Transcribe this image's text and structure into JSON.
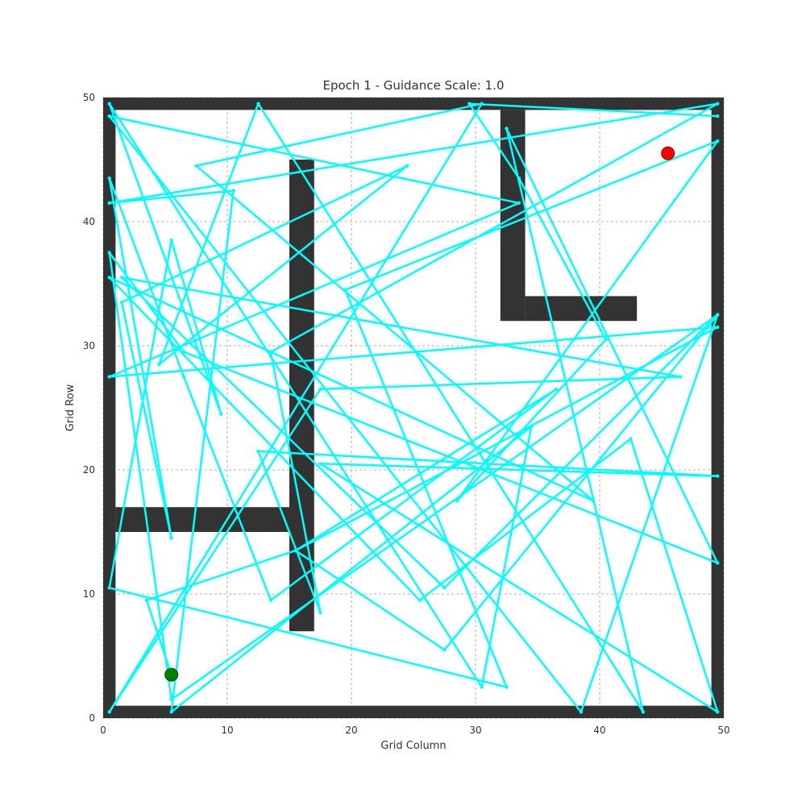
{
  "chart_data": {
    "type": "line",
    "title": "Epoch 1 - Guidance Scale: 1.0",
    "xlabel": "Grid Column",
    "ylabel": "Grid Row",
    "xlim": [
      0,
      50
    ],
    "ylim": [
      0,
      50
    ],
    "xticks": [
      "0",
      "10",
      "20",
      "30",
      "40",
      "50"
    ],
    "yticks": [
      "0",
      "10",
      "20",
      "30",
      "40",
      "50"
    ],
    "grid": true,
    "colors": {
      "path": "#00ffff",
      "wall": "#333333",
      "start": "#008000",
      "goal": "#ff0000",
      "grid": "#999999"
    },
    "walls": [
      {
        "x0": 0,
        "x1": 50,
        "y0": 0,
        "y1": 1
      },
      {
        "x0": 0,
        "x1": 50,
        "y0": 49,
        "y1": 50
      },
      {
        "x0": 0,
        "x1": 1,
        "y0": 0,
        "y1": 50
      },
      {
        "x0": 49,
        "x1": 50,
        "y0": 0,
        "y1": 50
      },
      {
        "x0": 15,
        "x1": 17,
        "y0": 7,
        "y1": 45
      },
      {
        "x0": 1,
        "x1": 15,
        "y0": 15,
        "y1": 17
      },
      {
        "x0": 32,
        "x1": 34,
        "y0": 32,
        "y1": 49
      },
      {
        "x0": 34,
        "x1": 43,
        "y0": 32,
        "y1": 34
      }
    ],
    "start": {
      "x": 5.5,
      "y": 3.5
    },
    "goal": {
      "x": 45.5,
      "y": 45.5
    },
    "path": [
      [
        5.5,
        3.5
      ],
      [
        3.5,
        9.5
      ],
      [
        15.5,
        13.5
      ],
      [
        49.5,
        31.5
      ],
      [
        0.5,
        27.5
      ],
      [
        33.5,
        41.5
      ],
      [
        0.5,
        48.5
      ],
      [
        38.5,
        0.5
      ],
      [
        49.5,
        32.5
      ],
      [
        27.5,
        5.5
      ],
      [
        15.5,
        13.5
      ],
      [
        36.5,
        26.5
      ],
      [
        13.5,
        9.5
      ],
      [
        6.5,
        27.5
      ],
      [
        0.5,
        43.5
      ],
      [
        5.5,
        14.5
      ],
      [
        1.5,
        33.5
      ],
      [
        24.5,
        44.5
      ],
      [
        4.5,
        28.5
      ],
      [
        12.5,
        49.5
      ],
      [
        43.5,
        0.5
      ],
      [
        32.5,
        47.5
      ],
      [
        49.5,
        12.5
      ],
      [
        6.5,
        29.5
      ],
      [
        0.5,
        37.5
      ],
      [
        5.5,
        1.5
      ],
      [
        49.5,
        32.5
      ],
      [
        27.5,
        10.5
      ],
      [
        1.5,
        35.5
      ],
      [
        46.5,
        27.5
      ],
      [
        17.5,
        26.5
      ],
      [
        0.5,
        0.5
      ],
      [
        30.5,
        49.5
      ],
      [
        7.5,
        44.5
      ],
      [
        39.5,
        17.5
      ],
      [
        0.5,
        35.5
      ],
      [
        25.5,
        9.5
      ],
      [
        42.5,
        22.5
      ],
      [
        49.5,
        0.5
      ],
      [
        17.5,
        20.5
      ],
      [
        49.5,
        19.5
      ],
      [
        12.5,
        21.5
      ],
      [
        17.5,
        8.5
      ],
      [
        13.5,
        29.5
      ],
      [
        49.5,
        49.5
      ],
      [
        0.5,
        41.5
      ],
      [
        10.5,
        42.5
      ],
      [
        5.5,
        0.5
      ],
      [
        34.5,
        23.5
      ],
      [
        30.5,
        2.5
      ],
      [
        0.5,
        49.5
      ],
      [
        9.5,
        24.5
      ],
      [
        5.5,
        38.5
      ],
      [
        0.5,
        10.5
      ],
      [
        32.5,
        2.5
      ],
      [
        19.5,
        34.5
      ],
      [
        49.5,
        46.5
      ],
      [
        28.5,
        17.5
      ],
      [
        40.5,
        30.5
      ],
      [
        33.5,
        43.5
      ],
      [
        29.5,
        49.5
      ],
      [
        49.5,
        48.5
      ]
    ]
  }
}
